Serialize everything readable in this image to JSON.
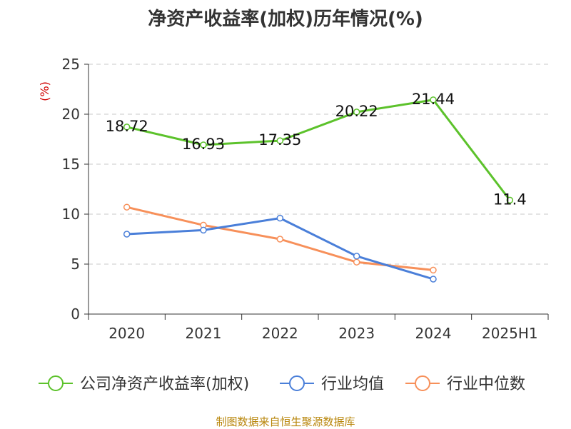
{
  "title": "净资产收益率(加权)历年情况(%)",
  "source_note": "制图数据来自恒生聚源数据库",
  "colors": {
    "company": "#5cc22b",
    "industry_avg": "#4a7fd9",
    "industry_median": "#f7905a",
    "axis": "#333333",
    "grid": "#c8c8c8",
    "unit": "#d00000",
    "source": "#b8860b"
  },
  "chart_data": {
    "type": "line",
    "title": "净资产收益率(加权)历年情况(%)",
    "ylabel": "(%)",
    "ylim": [
      0,
      25
    ],
    "yticks": [
      0,
      5,
      10,
      15,
      20,
      25
    ],
    "grid": true,
    "legend_position": "bottom",
    "categories": [
      "2020",
      "2021",
      "2022",
      "2023",
      "2024",
      "2025H1"
    ],
    "series": [
      {
        "name": "公司净资产收益率(加权)",
        "color_key": "company",
        "values": [
          18.72,
          16.93,
          17.35,
          20.22,
          21.44,
          11.4
        ],
        "labels": [
          "18.72",
          "16.93",
          "17.35",
          "20.22",
          "21.44",
          "11.4"
        ]
      },
      {
        "name": "行业均值",
        "color_key": "industry_avg",
        "values": [
          8.0,
          8.4,
          9.6,
          5.8,
          3.5,
          null
        ]
      },
      {
        "name": "行业中位数",
        "color_key": "industry_median",
        "values": [
          10.7,
          8.9,
          7.5,
          5.2,
          4.4,
          null
        ]
      }
    ]
  }
}
